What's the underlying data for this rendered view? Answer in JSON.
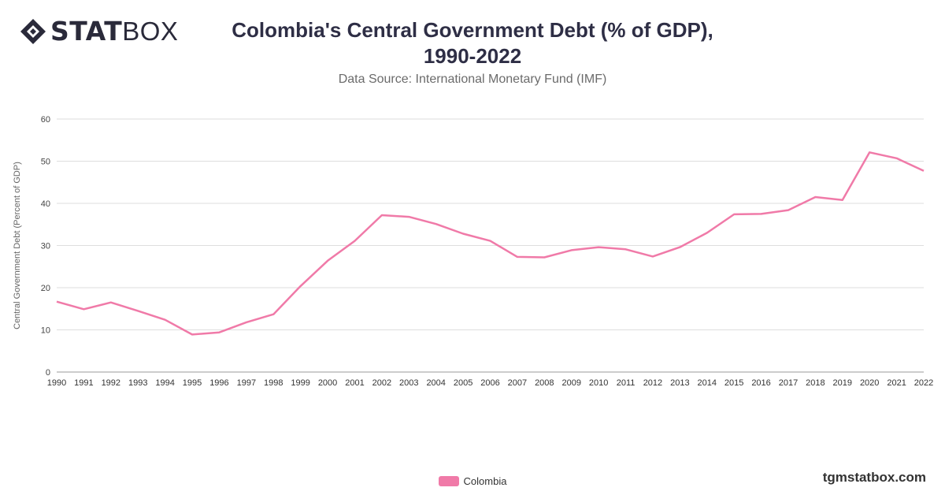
{
  "logo": {
    "bold": "STAT",
    "light": "BOX",
    "icon": "statbox-diamond-icon"
  },
  "brand_url": "tgmstatbox.com",
  "chart_data": {
    "type": "line",
    "title_line1": "Colombia's Central Government Debt (% of GDP),",
    "title_line2": "1990-2022",
    "subtitle": "Data Source: International Monetary Fund (IMF)",
    "xlabel": "",
    "ylabel": "Central Government Debt (Percent of GDP)",
    "ylim": [
      0,
      60
    ],
    "yticks": [
      0,
      10,
      20,
      30,
      40,
      50,
      60
    ],
    "grid": true,
    "legend_position": "bottom-center",
    "categories": [
      "1990",
      "1991",
      "1992",
      "1993",
      "1994",
      "1995",
      "1996",
      "1997",
      "1998",
      "1999",
      "2000",
      "2001",
      "2002",
      "2003",
      "2004",
      "2005",
      "2006",
      "2007",
      "2008",
      "2009",
      "2010",
      "2011",
      "2012",
      "2013",
      "2014",
      "2015",
      "2016",
      "2017",
      "2018",
      "2019",
      "2020",
      "2021",
      "2022"
    ],
    "series": [
      {
        "name": "Colombia",
        "color": "#f07aa8",
        "values": [
          16.7,
          14.9,
          16.5,
          14.5,
          12.4,
          8.9,
          9.4,
          11.8,
          13.7,
          20.4,
          26.4,
          31.1,
          37.2,
          36.8,
          35.1,
          32.8,
          31.1,
          27.3,
          27.2,
          28.9,
          29.6,
          29.1,
          27.4,
          29.6,
          33.0,
          37.4,
          37.5,
          38.4,
          41.5,
          40.8,
          52.1,
          50.7,
          47.7
        ]
      }
    ]
  }
}
